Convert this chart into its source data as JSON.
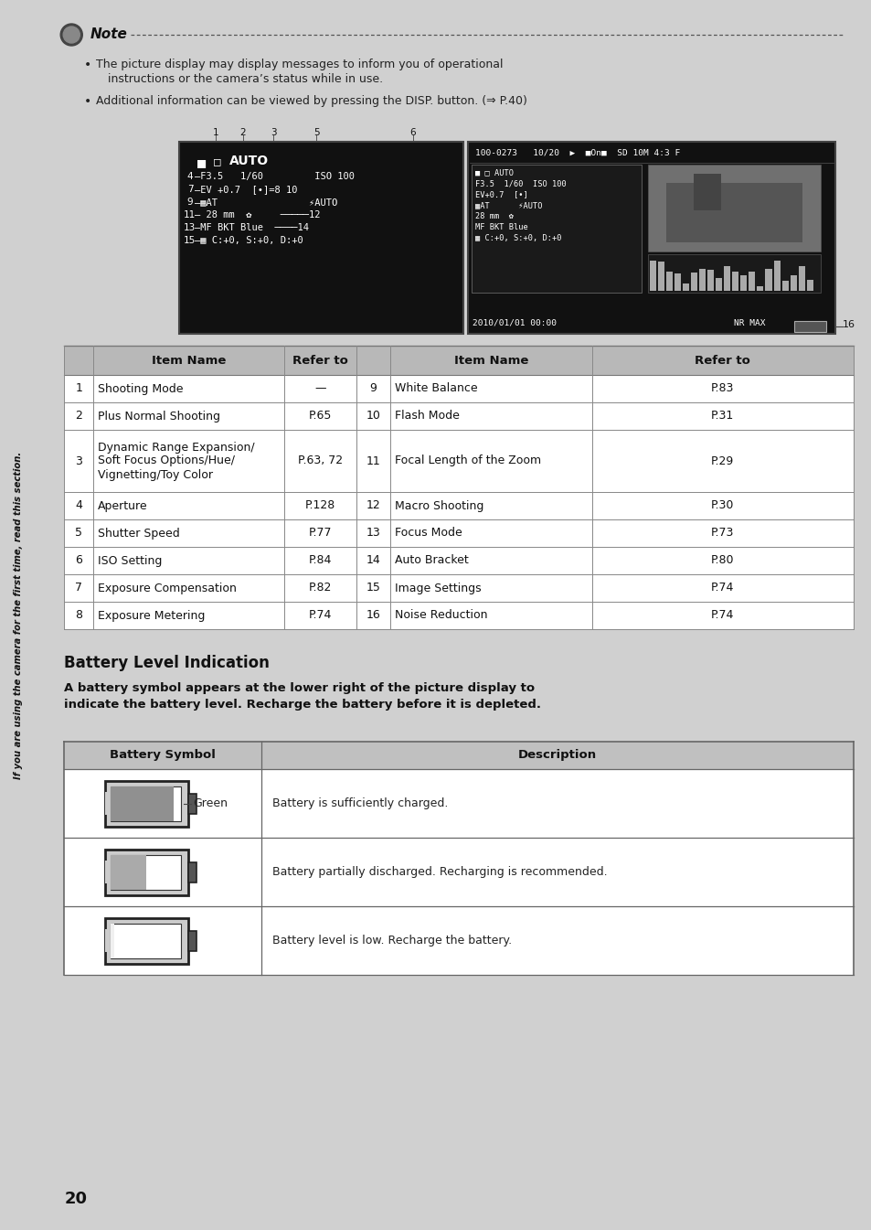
{
  "bg_color": "#d0d0d0",
  "page_bg": "#ffffff",
  "sidebar_color": "#bbbbbb",
  "page_number": "20",
  "sidebar_text": "If you are using the camera for the first time, read this section.",
  "note_bullets": [
    "The picture display may display messages to inform you of operational\n  instructions or the camera’s status while in use.",
    "Additional information can be viewed by pressing the DISP. button. (⇒ P.40)"
  ],
  "table_rows": [
    [
      "1",
      "Shooting Mode",
      "—",
      "9",
      "White Balance",
      "P.83"
    ],
    [
      "2",
      "Plus Normal Shooting",
      "P.65",
      "10",
      "Flash Mode",
      "P.31"
    ],
    [
      "3",
      "Dynamic Range Expansion/\nSoft Focus Options/Hue/\nVignetting/Toy Color",
      "P.63, 72",
      "11",
      "Focal Length of the Zoom",
      "P.29"
    ],
    [
      "4",
      "Aperture",
      "P.128",
      "12",
      "Macro Shooting",
      "P.30"
    ],
    [
      "5",
      "Shutter Speed",
      "P.77",
      "13",
      "Focus Mode",
      "P.73"
    ],
    [
      "6",
      "ISO Setting",
      "P.84",
      "14",
      "Auto Bracket",
      "P.80"
    ],
    [
      "7",
      "Exposure Compensation",
      "P.82",
      "15",
      "Image Settings",
      "P.74"
    ],
    [
      "8",
      "Exposure Metering",
      "P.74",
      "16",
      "Noise Reduction",
      "P.74"
    ]
  ],
  "battery_title": "Battery Level Indication",
  "battery_desc": [
    "Battery is sufficiently charged.",
    "Battery partially discharged. Recharging is recommended.",
    "Battery level is low. Recharge the battery."
  ],
  "bat_fill": [
    0.9,
    0.5,
    0.05
  ]
}
